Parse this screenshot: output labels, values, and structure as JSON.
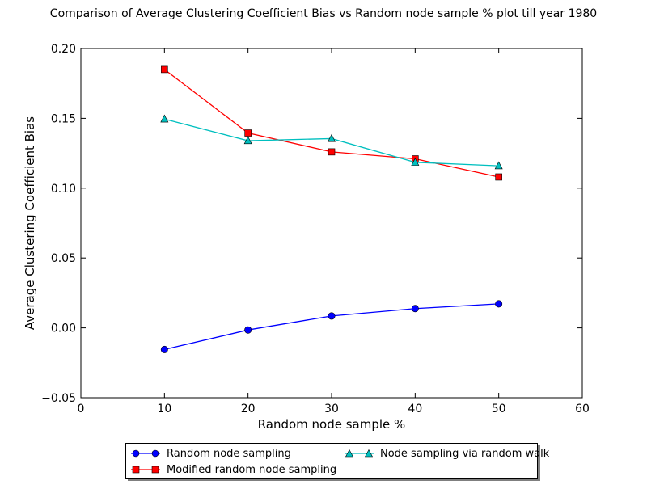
{
  "chart_data": {
    "type": "line",
    "title": "Comparison of Average Clustering Coefficient Bias vs Random node sample % plot till year 1980",
    "xlabel": "Random node sample %",
    "ylabel": "Average Clustering Coefficient Bias",
    "xlim": [
      0,
      60
    ],
    "ylim": [
      -0.05,
      0.2
    ],
    "xticks": [
      "0",
      "10",
      "20",
      "30",
      "40",
      "50",
      "60"
    ],
    "yticks": [
      "−0.05",
      "0.00",
      "0.05",
      "0.10",
      "0.15",
      "0.20"
    ],
    "grid": false,
    "legend_position": "below plot",
    "x": [
      10,
      20,
      30,
      40,
      50
    ],
    "series": [
      {
        "name": "Random node sampling",
        "values": [
          -0.0155,
          -0.0015,
          0.0085,
          0.0138,
          0.0172
        ],
        "color": "#0000ff",
        "marker": "circle"
      },
      {
        "name": "Modified random node sampling",
        "values": [
          0.185,
          0.1395,
          0.126,
          0.121,
          0.108
        ],
        "color": "#ff0000",
        "marker": "square"
      },
      {
        "name": "Node sampling via random walk",
        "values": [
          0.1495,
          0.134,
          0.1355,
          0.1185,
          0.116
        ],
        "color": "#00bfbf",
        "marker": "triangle"
      }
    ]
  }
}
